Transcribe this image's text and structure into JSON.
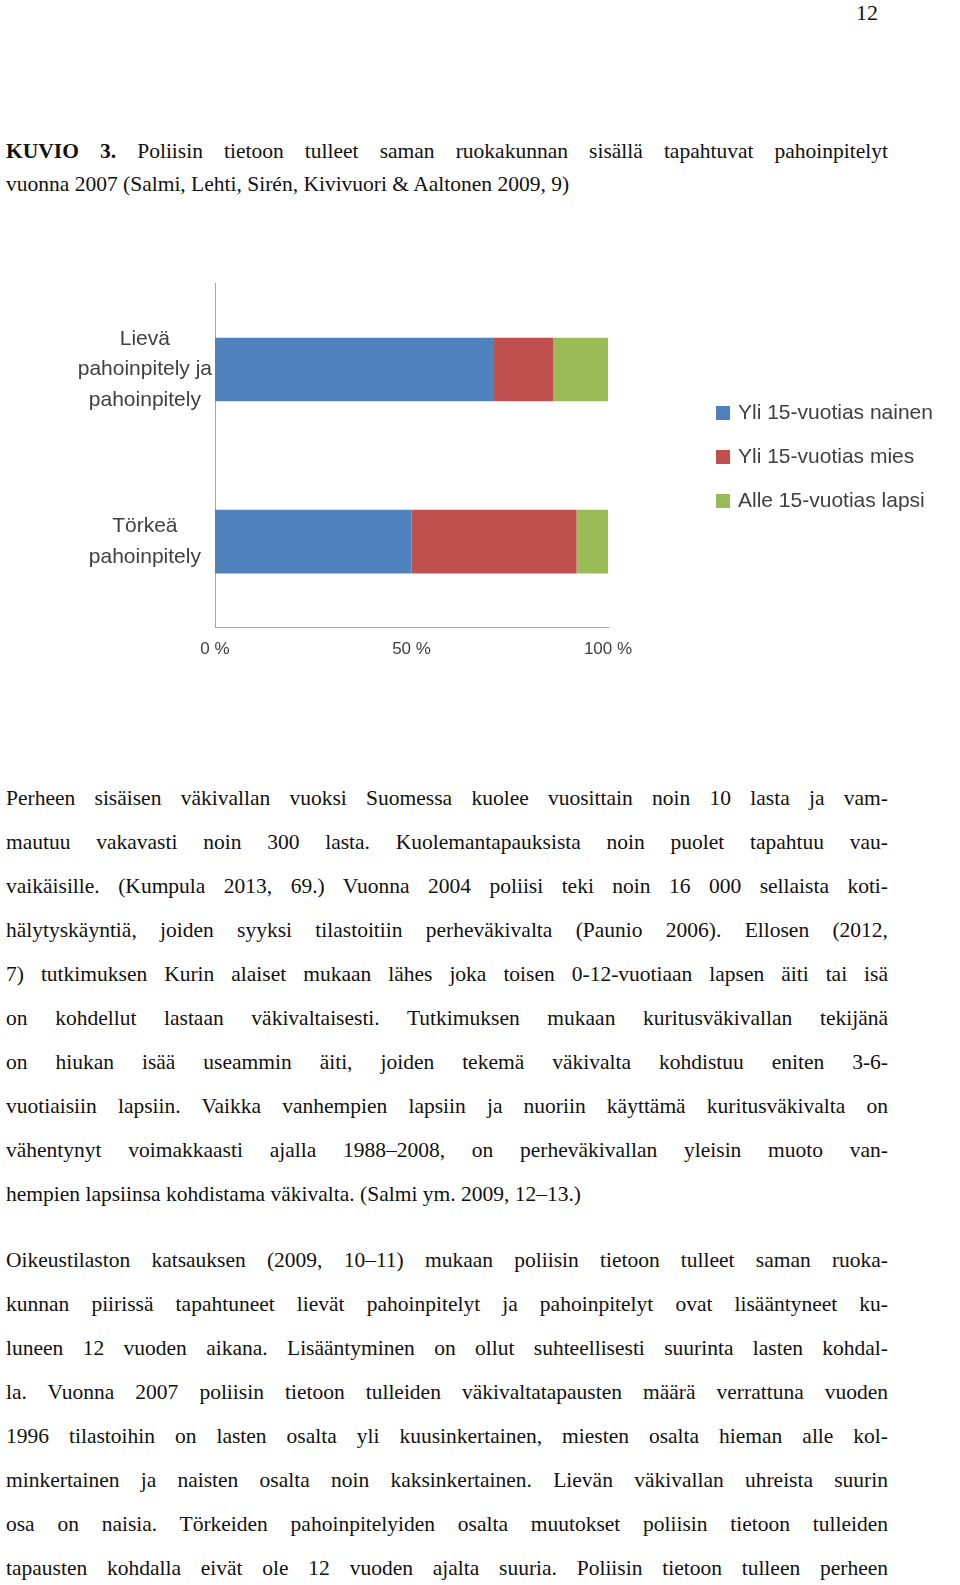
{
  "page_number": "12",
  "caption": {
    "label": "KUVIO 3.",
    "lines": [
      "Poliisin tietoon tulleet saman ruokakunnan sisällä tapahtuvat pahoinpitelyt",
      "vuonna 2007 (Salmi, Lehti, Sirén, Kivivuori & Aaltonen 2009, 9)"
    ]
  },
  "chart_data": {
    "type": "bar",
    "orientation": "horizontal",
    "stacked": true,
    "grid": false,
    "legend": "right",
    "categories": [
      "Lievä pahoinpitely ja pahoinpitely",
      "Törkeä pahoinpitely"
    ],
    "series": [
      {
        "name": "Yli 15-vuotias nainen",
        "color": "#4f81bd",
        "values": [
          71,
          50
        ]
      },
      {
        "name": "Yli 15-vuotias mies",
        "color": "#c0504d",
        "values": [
          15,
          42
        ]
      },
      {
        "name": "Alle 15-vuotias lapsi",
        "color": "#9bbb59",
        "values": [
          14,
          8
        ]
      }
    ],
    "xlim": [
      0,
      100
    ],
    "xticks": [
      {
        "value": 0,
        "label": "0 %"
      },
      {
        "value": 50,
        "label": "50 %"
      },
      {
        "value": 100,
        "label": "100 %"
      }
    ]
  },
  "paragraphs": [
    [
      "Perheen sisäisen väkivallan vuoksi Suomessa kuolee vuosittain noin 10 lasta ja vam-",
      "mautuu vakavasti noin 300 lasta. Kuolemantapauksista noin puolet tapahtuu vau-",
      "vaikäisille. (Kumpula 2013, 69.) Vuonna 2004 poliisi teki noin 16 000 sellaista koti-",
      "hälytyskäyntiä, joiden syyksi tilastoitiin perheväkivalta (Paunio 2006). Ellosen (2012,",
      "7) tutkimuksen Kurin alaiset mukaan lähes joka toisen 0-12-vuotiaan lapsen äiti tai isä",
      "on kohdellut lastaan väkivaltaisesti. Tutkimuksen mukaan kuritusväkivallan tekijänä",
      "on hiukan isää useammin äiti, joiden tekemä väkivalta kohdistuu eniten 3-6-",
      "vuotiaisiin lapsiin. Vaikka vanhempien lapsiin ja nuoriin käyttämä kuritusväkivalta on",
      "vähentynyt voimakkaasti ajalla 1988–2008, on perheväkivallan yleisin muoto van-",
      "hempien lapsiinsa kohdistama väkivalta. (Salmi ym. 2009, 12–13.)"
    ],
    [
      "Oikeustilaston katsauksen (2009, 10–11) mukaan poliisin tietoon tulleet saman ruoka-",
      "kunnan piirissä tapahtuneet lievät pahoinpitelyt ja pahoinpitelyt ovat lisääntyneet ku-",
      "luneen 12 vuoden aikana. Lisääntyminen on ollut suhteellisesti suurinta lasten kohdal-",
      "la. Vuonna 2007 poliisin tietoon tulleiden väkivaltatapausten määrä verrattuna vuoden",
      "1996 tilastoihin on lasten osalta yli kuusinkertainen, miesten osalta hieman alle kol-",
      "minkertainen ja naisten osalta noin kaksinkertainen. Lievän väkivallan uhreista suurin",
      "osa on naisia. Törkeiden pahoinpitelyiden osalta muutokset poliisin tietoon tulleiden",
      "tapausten kohdalla eivät ole 12 vuoden ajalta suuria. Poliisin tietoon tulleen perheen"
    ]
  ]
}
